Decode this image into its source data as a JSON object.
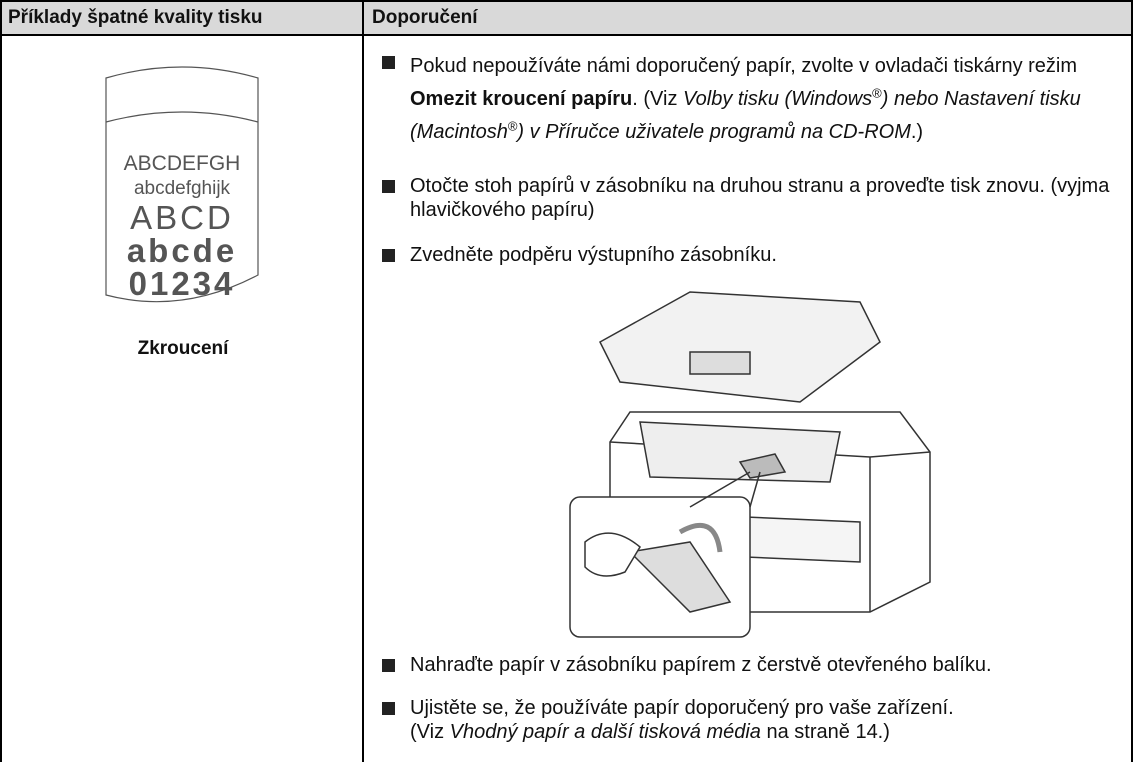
{
  "table": {
    "headers": [
      "Příklady špatné kvality tisku",
      "Doporučení"
    ],
    "rows": [
      {
        "sample_text": [
          "ABCDEFGH",
          "abcdefghijk",
          "ABCD",
          "abcde",
          "01234"
        ],
        "caption": "Zkroucení",
        "recommendations": [
          {
            "runs": [
              "Pokud nepoužíváte námi doporučený papír, zvolte v ovladači tiskárny režim ",
              "Omezit kroucení papíru",
              ". (Viz ",
              "Volby tisku (Windows",
              "®",
              ") nebo Nastavení tisku (Macintosh",
              "®",
              ") v Příručce uživatele programů na CD-ROM",
              ".)"
            ]
          },
          {
            "runs": [
              "Otočte stoh papírů v zásobníku na druhou stranu a proveďte tisk znovu. (vyjma hlavičkového papíru)"
            ]
          },
          {
            "runs": [
              "Zvedněte podpěru výstupního zásobníku."
            ]
          },
          {
            "runs": [
              "Nahraďte papír v zásobníku papírem z čerstvě otevřeného balíku."
            ]
          },
          {
            "runs": [
              "Ujistěte se, že používáte papír doporučený pro vaše zařízení.",
              "(Viz ",
              "Vhodný papír a další tisková média",
              " na straně 14.)"
            ]
          }
        ]
      }
    ]
  }
}
